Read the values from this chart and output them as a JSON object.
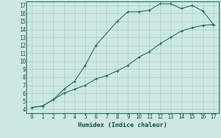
{
  "xlabel": "Humidex (Indice chaleur)",
  "background_color": "#cde8e4",
  "grid_color": "#b0d4d0",
  "line_color": "#1a6b5a",
  "xlim": [
    -0.5,
    17.5
  ],
  "ylim": [
    3.5,
    17.5
  ],
  "xticks": [
    0,
    1,
    2,
    3,
    4,
    5,
    6,
    7,
    8,
    9,
    10,
    11,
    12,
    13,
    14,
    15,
    16,
    17
  ],
  "yticks": [
    4,
    5,
    6,
    7,
    8,
    9,
    10,
    11,
    12,
    13,
    14,
    15,
    16,
    17
  ],
  "curve1_x": [
    0,
    1,
    2,
    3,
    4,
    5,
    6,
    8,
    9,
    10,
    11,
    12,
    13,
    14,
    15,
    16,
    17
  ],
  "curve1_y": [
    4.2,
    4.4,
    5.2,
    6.5,
    7.5,
    9.5,
    12.0,
    15.0,
    16.2,
    16.2,
    16.4,
    17.2,
    17.2,
    16.6,
    17.0,
    16.3,
    14.6
  ],
  "curve2_x": [
    0,
    1,
    2,
    3,
    4,
    5,
    6,
    7,
    8,
    9,
    10,
    11,
    12,
    13,
    14,
    15,
    16,
    17
  ],
  "curve2_y": [
    4.2,
    4.4,
    5.2,
    6.0,
    6.5,
    7.0,
    7.8,
    8.2,
    8.8,
    9.5,
    10.5,
    11.2,
    12.2,
    13.0,
    13.8,
    14.2,
    14.5,
    14.6
  ]
}
